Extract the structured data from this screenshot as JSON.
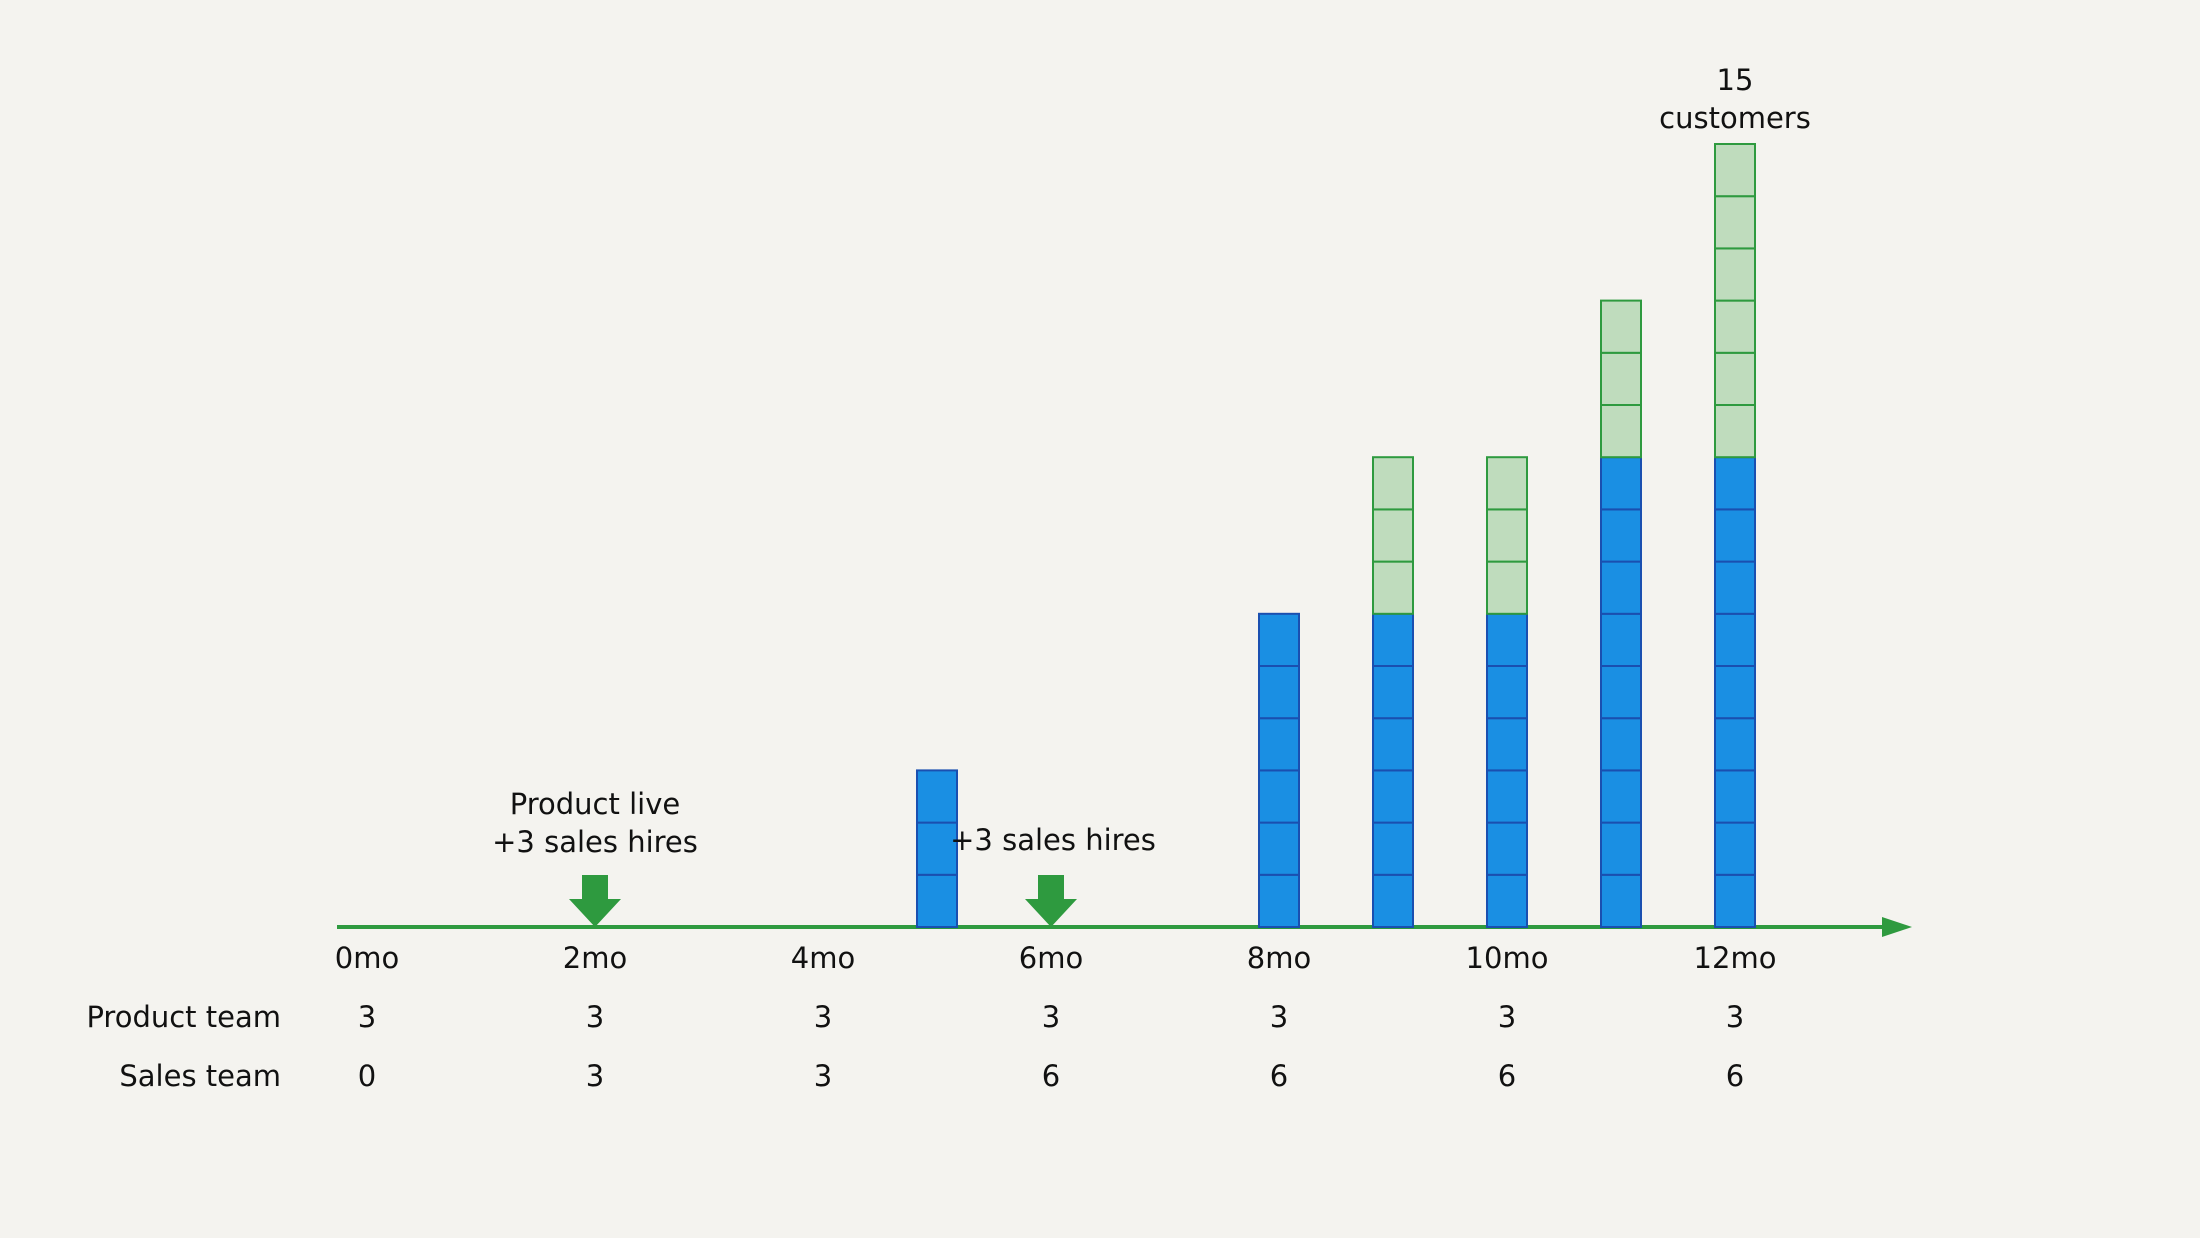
{
  "chart_data": {
    "type": "bar",
    "stacked": true,
    "unit_blocks": true,
    "x_labels": [
      "0mo",
      "2mo",
      "4mo",
      "6mo",
      "8mo",
      "10mo",
      "12mo"
    ],
    "x": [
      0,
      1,
      2,
      3,
      4,
      5,
      6,
      7,
      8,
      9,
      10,
      11,
      12
    ],
    "series": [
      {
        "values": [
          0,
          0,
          0,
          0,
          0,
          3,
          0,
          0,
          6,
          6,
          6,
          9,
          9
        ],
        "color": "#1a8fe3",
        "edge": "#1a4fb0"
      },
      {
        "values": [
          0,
          0,
          0,
          0,
          0,
          0,
          0,
          0,
          0,
          3,
          3,
          3,
          6
        ],
        "color": "#bfdcbd",
        "edge": "#2e9a3f"
      }
    ],
    "annotations": [
      {
        "text_lines": [
          "Product  live",
          "+3 sales hires"
        ],
        "x": 2,
        "marker": "down-arrow"
      },
      {
        "text_lines": [
          "+3 sales hires"
        ],
        "x": 6,
        "marker": "down-arrow"
      },
      {
        "text_lines": [
          "15",
          "customers"
        ],
        "x": 12
      }
    ],
    "table_rows": [
      {
        "label": "Product team",
        "values": [
          "3",
          "3",
          "3",
          "3",
          "3",
          "3",
          "3"
        ]
      },
      {
        "label": "Sales team",
        "values": [
          "0",
          "3",
          "3",
          "6",
          "6",
          "6",
          "6"
        ]
      }
    ],
    "axis_color": "#2e9a3f"
  }
}
